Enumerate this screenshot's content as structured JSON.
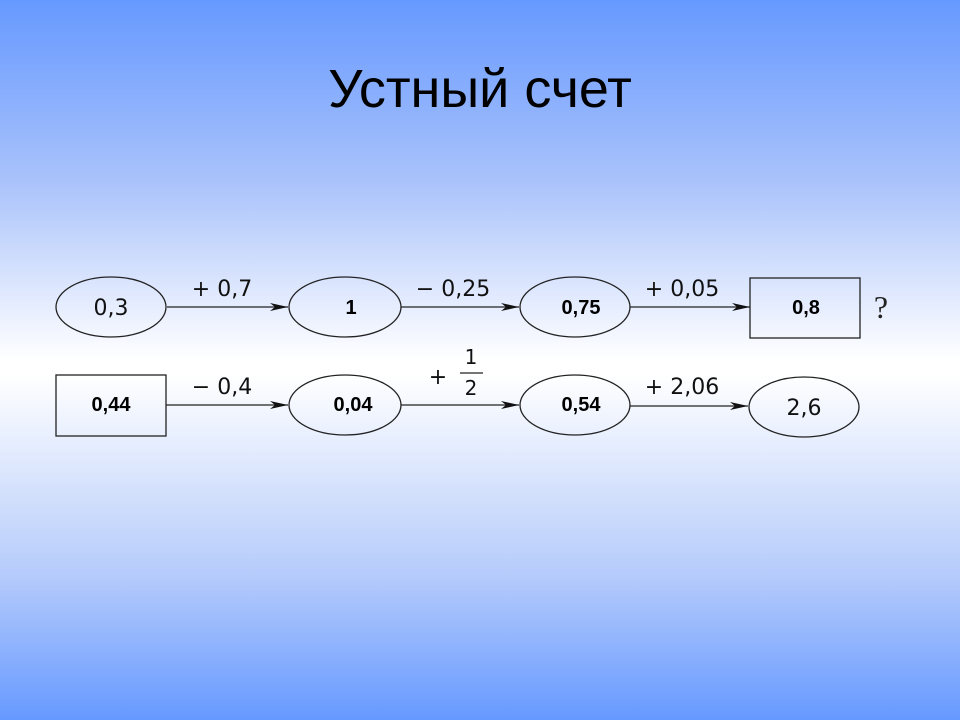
{
  "title": "Устный счет",
  "diagram": {
    "row1": {
      "nodes": [
        {
          "shape": "ellipse",
          "value": "0,3"
        },
        {
          "shape": "ellipse",
          "value": "1"
        },
        {
          "shape": "ellipse",
          "value": "0,75"
        },
        {
          "shape": "rectangle",
          "value": "0,8"
        }
      ],
      "operations": [
        "+ 0,7",
        "− 0,25",
        "+ 0,05"
      ],
      "question_mark": "?"
    },
    "row2": {
      "nodes": [
        {
          "shape": "rectangle",
          "value": "0,44"
        },
        {
          "shape": "ellipse",
          "value": "0,04"
        },
        {
          "shape": "ellipse",
          "value": "0,54"
        },
        {
          "shape": "ellipse",
          "value": "2,6"
        }
      ],
      "operations": [
        "− 0,4",
        {
          "sign": "+",
          "numerator": "1",
          "denominator": "2"
        },
        "+ 2,06"
      ]
    }
  }
}
